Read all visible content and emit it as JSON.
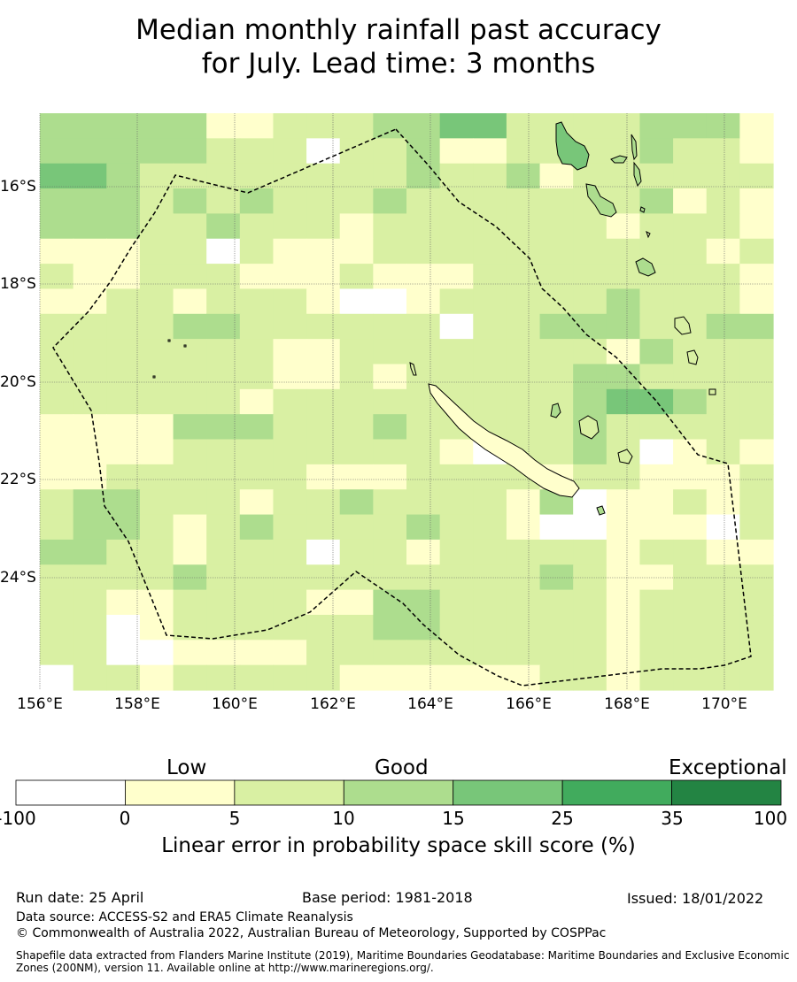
{
  "title": {
    "line1": "Median monthly rainfall past accuracy",
    "line2": "for July. Lead time: 3 months"
  },
  "map": {
    "lon_ticks": [
      "156°E",
      "158°E",
      "160°E",
      "162°E",
      "164°E",
      "166°E",
      "168°E",
      "170°E"
    ],
    "lat_ticks": [
      "16°S",
      "18°S",
      "20°S",
      "22°S",
      "24°S"
    ],
    "skill_grid": [
      "3333311222334422223331",
      "3333322202231122223221",
      "4432222222232231222222",
      "3332323222322222223121",
      "3332232221222222212221",
      "1112202111222222222212",
      "2112221112111222222221",
      "1122122210012222232221",
      "2222332222220223332233",
      "2222222112222222213222",
      "2222222112122222332222",
      "2222221222222222344322",
      "1111333222322222322222",
      "1111222222221022320121",
      "1122222211122221221112",
      "2332221223222213011212",
      "2332123222232210011102",
      "3322122202212222212211",
      "2222322222222223211222",
      "2211222211332222212222",
      "2201222222332222212222",
      "2200111122222222212222",
      "0221222221111112212222"
    ],
    "colors": {
      "ocean_white": "#ffffff",
      "bin_0_5": "#ffffcc",
      "bin_5_10": "#d9f0a3",
      "bin_10_15": "#addd8e",
      "bin_15_25": "#78c679",
      "bin_25_35": "#41ab5d",
      "bin_35_100": "#238443"
    }
  },
  "colorbar": {
    "categories": [
      "Low",
      "Good",
      "Exceptional"
    ],
    "ticks": [
      "-100",
      "0",
      "5",
      "10",
      "15",
      "25",
      "35",
      "100"
    ],
    "colors": [
      "#ffffff",
      "#ffffcc",
      "#d9f0a3",
      "#addd8e",
      "#78c679",
      "#41ab5d",
      "#238443"
    ],
    "title": "Linear error in probability space skill score (%)"
  },
  "footer": {
    "run_date": "Run date: 25 April",
    "base_period": "Base period: 1981-2018",
    "issued": "Issued: 18/01/2022",
    "data_source": "Data source: ACCESS-S2 and ERA5 Climate Reanalysis",
    "copyright": "© Commonwealth of Australia 2022, Australian Bureau of Meteorology, Supported by COSPPac",
    "shapefile": "Shapefile data extracted from Flanders Marine Institute (2019), Maritime Boundaries Geodatabase: Maritime Boundaries and Exclusive Economic Zones (200NM), version 11. Available online at http://www.marineregions.org/."
  }
}
